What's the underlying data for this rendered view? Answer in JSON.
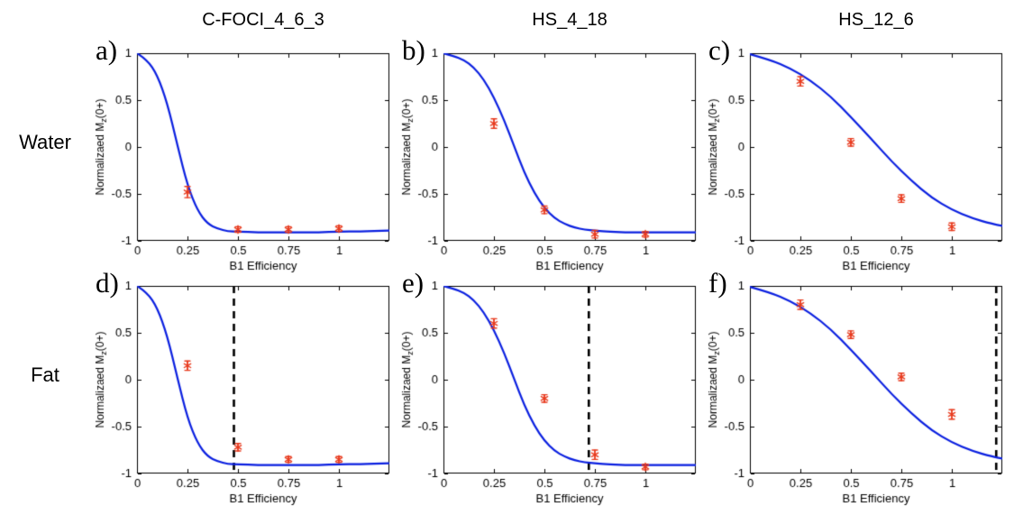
{
  "figure": {
    "columns": [
      "C-FOCI_4_6_3",
      "HS_4_18",
      "HS_12_6"
    ],
    "rows": [
      "Water",
      "Fat"
    ]
  },
  "style": {
    "curve_color": "#0a1fe0",
    "marker_color": "#e8391c",
    "dashed_color": "#000000",
    "axis_color": "#000000"
  },
  "chart_data": [
    {
      "type": "line+scatter",
      "panel_label": "a)",
      "row": "Water",
      "column": "C-FOCI_4_6_3",
      "xlabel": "B1 Efficiency",
      "ylabel": {
        "pre": "Normalizaed M",
        "sub": "z",
        "post": "(0+)"
      },
      "xlim": [
        0,
        1.25
      ],
      "ylim": [
        -1,
        1
      ],
      "xticks": [
        0,
        0.25,
        0.5,
        0.75,
        1
      ],
      "xtick_labels": [
        "0",
        "0.25",
        "0.5",
        "0.75",
        "1"
      ],
      "yticks": [
        -1,
        -0.5,
        0,
        0.5,
        1
      ],
      "ytick_labels": [
        "-1",
        "-0.5",
        "0",
        "0.5",
        "1"
      ],
      "curve": {
        "x": [
          0,
          0.05,
          0.1,
          0.15,
          0.2,
          0.25,
          0.3,
          0.35,
          0.4,
          0.45,
          0.5,
          0.6,
          0.7,
          0.8,
          0.9,
          1.0,
          1.1,
          1.25
        ],
        "y": [
          1.0,
          0.93,
          0.77,
          0.47,
          0.02,
          -0.41,
          -0.68,
          -0.82,
          -0.87,
          -0.9,
          -0.9,
          -0.91,
          -0.91,
          -0.91,
          -0.91,
          -0.9,
          -0.9,
          -0.89
        ]
      },
      "points": {
        "x": [
          0.25,
          0.5,
          0.75,
          1
        ],
        "y": [
          -0.48,
          -0.88,
          -0.88,
          -0.87
        ],
        "yerr": [
          0.06,
          0.03,
          0.03,
          0.03
        ]
      },
      "dashed_line_x": null
    },
    {
      "type": "line+scatter",
      "panel_label": "b)",
      "row": "Water",
      "column": "HS_4_18",
      "xlabel": "B1 Efficiency",
      "ylabel": {
        "pre": "Normalizaed M",
        "sub": "z",
        "post": "(0+)"
      },
      "xlim": [
        0,
        1.25
      ],
      "ylim": [
        -1,
        1
      ],
      "xticks": [
        0,
        0.25,
        0.5,
        0.75,
        1
      ],
      "xtick_labels": [
        "0",
        "0.25",
        "0.5",
        "0.75",
        "1"
      ],
      "yticks": [
        -1,
        -0.5,
        0,
        0.5,
        1
      ],
      "ytick_labels": [
        "-1",
        "-0.5",
        "0",
        "0.5",
        "1"
      ],
      "curve": {
        "x": [
          0,
          0.05,
          0.1,
          0.15,
          0.2,
          0.25,
          0.3,
          0.35,
          0.4,
          0.45,
          0.5,
          0.55,
          0.6,
          0.65,
          0.7,
          0.75,
          0.8,
          0.9,
          1.0,
          1.1,
          1.25
        ],
        "y": [
          1.0,
          0.97,
          0.93,
          0.85,
          0.72,
          0.53,
          0.29,
          0.01,
          -0.27,
          -0.49,
          -0.65,
          -0.76,
          -0.82,
          -0.86,
          -0.88,
          -0.89,
          -0.9,
          -0.91,
          -0.91,
          -0.91,
          -0.91
        ]
      },
      "points": {
        "x": [
          0.25,
          0.5,
          0.75,
          1
        ],
        "y": [
          0.25,
          -0.67,
          -0.93,
          -0.93
        ],
        "yerr": [
          0.05,
          0.04,
          0.04,
          0.03
        ]
      },
      "dashed_line_x": null
    },
    {
      "type": "line+scatter",
      "panel_label": "c)",
      "row": "Water",
      "column": "HS_12_6",
      "xlabel": "B1 Efficiency",
      "ylabel": {
        "pre": "Normalizaed M",
        "sub": "z",
        "post": "(0+)"
      },
      "xlim": [
        0,
        1.25
      ],
      "ylim": [
        -1,
        1
      ],
      "xticks": [
        0,
        0.25,
        0.5,
        0.75,
        1
      ],
      "xtick_labels": [
        "0",
        "0.25",
        "0.5",
        "0.75",
        "1"
      ],
      "yticks": [
        -1,
        -0.5,
        0,
        0.5,
        1
      ],
      "ytick_labels": [
        "-1",
        "-0.5",
        "0",
        "0.5",
        "1"
      ],
      "curve": {
        "x": [
          0,
          0.1,
          0.2,
          0.3,
          0.4,
          0.5,
          0.6,
          0.7,
          0.8,
          0.9,
          1.0,
          1.1,
          1.2,
          1.25
        ],
        "y": [
          0.99,
          0.93,
          0.84,
          0.71,
          0.54,
          0.32,
          0.09,
          -0.15,
          -0.36,
          -0.54,
          -0.67,
          -0.76,
          -0.82,
          -0.84
        ]
      },
      "points": {
        "x": [
          0.25,
          0.5,
          0.75,
          1
        ],
        "y": [
          0.7,
          0.05,
          -0.55,
          -0.85
        ],
        "yerr": [
          0.05,
          0.04,
          0.04,
          0.04
        ]
      },
      "dashed_line_x": null
    },
    {
      "type": "line+scatter",
      "panel_label": "d)",
      "row": "Fat",
      "column": "C-FOCI_4_6_3",
      "xlabel": "B1 Efficiency",
      "ylabel": {
        "pre": "Normalizaed M",
        "sub": "z",
        "post": "(0+)"
      },
      "xlim": [
        0,
        1.25
      ],
      "ylim": [
        -1,
        1
      ],
      "xticks": [
        0,
        0.25,
        0.5,
        0.75,
        1
      ],
      "xtick_labels": [
        "0",
        "0.25",
        "0.5",
        "0.75",
        "1"
      ],
      "yticks": [
        -1,
        -0.5,
        0,
        0.5,
        1
      ],
      "ytick_labels": [
        "-1",
        "-0.5",
        "0",
        "0.5",
        "1"
      ],
      "curve": {
        "x": [
          0,
          0.05,
          0.1,
          0.15,
          0.2,
          0.25,
          0.3,
          0.35,
          0.4,
          0.45,
          0.5,
          0.6,
          0.7,
          0.8,
          0.9,
          1.0,
          1.1,
          1.25
        ],
        "y": [
          1.0,
          0.93,
          0.77,
          0.47,
          0.02,
          -0.41,
          -0.68,
          -0.82,
          -0.87,
          -0.9,
          -0.9,
          -0.91,
          -0.91,
          -0.91,
          -0.91,
          -0.9,
          -0.9,
          -0.89
        ]
      },
      "points": {
        "x": [
          0.25,
          0.5,
          0.75,
          1
        ],
        "y": [
          0.15,
          -0.72,
          -0.85,
          -0.85
        ],
        "yerr": [
          0.05,
          0.04,
          0.03,
          0.03
        ]
      },
      "dashed_line_x": 0.48
    },
    {
      "type": "line+scatter",
      "panel_label": "e)",
      "row": "Fat",
      "column": "HS_4_18",
      "xlabel": "B1 Efficiency",
      "ylabel": {
        "pre": "Normalizaed M",
        "sub": "z",
        "post": "(0+)"
      },
      "xlim": [
        0,
        1.25
      ],
      "ylim": [
        -1,
        1
      ],
      "xticks": [
        0,
        0.25,
        0.5,
        0.75,
        1
      ],
      "xtick_labels": [
        "0",
        "0.25",
        "0.5",
        "0.75",
        "1"
      ],
      "yticks": [
        -1,
        -0.5,
        0,
        0.5,
        1
      ],
      "ytick_labels": [
        "-1",
        "-0.5",
        "0",
        "0.5",
        "1"
      ],
      "curve": {
        "x": [
          0,
          0.05,
          0.1,
          0.15,
          0.2,
          0.25,
          0.3,
          0.35,
          0.4,
          0.45,
          0.5,
          0.55,
          0.6,
          0.65,
          0.7,
          0.75,
          0.8,
          0.9,
          1.0,
          1.1,
          1.25
        ],
        "y": [
          1.0,
          0.97,
          0.93,
          0.85,
          0.72,
          0.53,
          0.29,
          0.01,
          -0.27,
          -0.49,
          -0.65,
          -0.76,
          -0.82,
          -0.86,
          -0.88,
          -0.89,
          -0.9,
          -0.91,
          -0.91,
          -0.91,
          -0.91
        ]
      },
      "points": {
        "x": [
          0.25,
          0.5,
          0.75,
          1
        ],
        "y": [
          0.6,
          -0.2,
          -0.8,
          -0.93
        ],
        "yerr": [
          0.05,
          0.04,
          0.05,
          0.03
        ]
      },
      "dashed_line_x": 0.72
    },
    {
      "type": "line+scatter",
      "panel_label": "f)",
      "row": "Fat",
      "column": "HS_12_6",
      "xlabel": "B1 Efficiency",
      "ylabel": {
        "pre": "Normalizaed M",
        "sub": "z",
        "post": "(0+)"
      },
      "xlim": [
        0,
        1.25
      ],
      "ylim": [
        -1,
        1
      ],
      "xticks": [
        0,
        0.25,
        0.5,
        0.75,
        1
      ],
      "xtick_labels": [
        "0",
        "0.25",
        "0.5",
        "0.75",
        "1"
      ],
      "yticks": [
        -1,
        -0.5,
        0,
        0.5,
        1
      ],
      "ytick_labels": [
        "-1",
        "-0.5",
        "0",
        "0.5",
        "1"
      ],
      "curve": {
        "x": [
          0,
          0.1,
          0.2,
          0.3,
          0.4,
          0.5,
          0.6,
          0.7,
          0.8,
          0.9,
          1.0,
          1.1,
          1.2,
          1.25
        ],
        "y": [
          0.99,
          0.93,
          0.84,
          0.71,
          0.54,
          0.32,
          0.09,
          -0.15,
          -0.36,
          -0.54,
          -0.67,
          -0.76,
          -0.82,
          -0.84
        ]
      },
      "points": {
        "x": [
          0.25,
          0.5,
          0.75,
          1
        ],
        "y": [
          0.8,
          0.48,
          0.03,
          -0.37
        ],
        "yerr": [
          0.05,
          0.04,
          0.04,
          0.05
        ]
      },
      "dashed_line_x": 1.22
    }
  ]
}
